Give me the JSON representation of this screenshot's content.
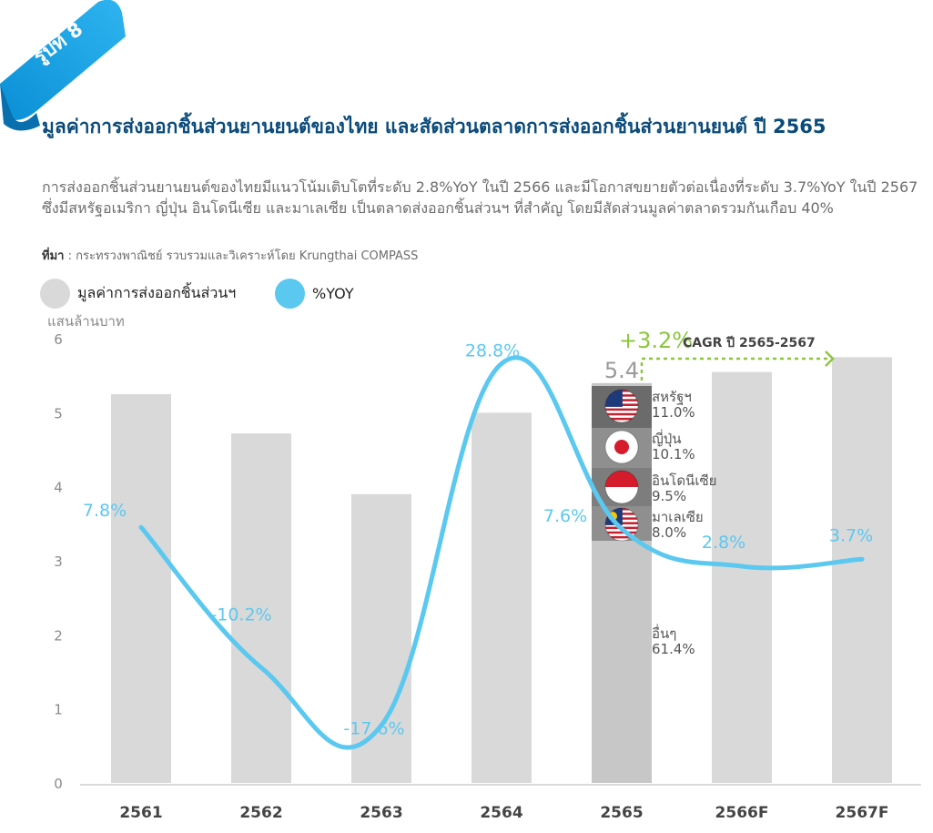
{
  "figure_label": "รูปที่ 8",
  "title": "มูลค่าการส่งออกชิ้นส่วนยานยนต์ของไทย และสัดส่วนตลาดการส่งออกชิ้นส่วนยานยนต์ ปี 2565",
  "subtitle": "การส่งออกชิ้นส่วนยานยนต์ของไทยมีแนวโน้มเติบโตที่ระดับ 2.8%YoY ในปี 2566 และมีโอกาสขยายตัวต่อเนื่องที่ระดับ 3.7%YoY ในปี 2567 ซึ่งมีสหรัฐอเมริกา ญี่ปุ่น อินโดนีเซีย และมาเลเซีย เป็นตลาดส่งออกชิ้นส่วนฯ ที่สำคัญ โดยมีสัดส่วนมูลค่าตลาดรวมกันเกือบ 40%",
  "source_label": "ที่มา",
  "source_text": ": กระทรวงพาณิชย์ รวบรวมและวิเคราะห์โดย Krungthai COMPASS",
  "colors": {
    "bar": "#d9d9d9",
    "bar_highlight": "#c7c7c7",
    "line": "#5bc8f0",
    "cagr": "#8cc63f",
    "title": "#0a4a7a"
  },
  "chart_data": {
    "type": "bar",
    "categories": [
      "2561",
      "2562",
      "2563",
      "2564",
      "2565",
      "2566F",
      "2567F"
    ],
    "series": [
      {
        "name": "มูลค่าการส่งออกชิ้นส่วนฯ",
        "type": "bar",
        "axis": "left",
        "values": [
          5.25,
          4.72,
          3.9,
          5.0,
          5.4,
          5.55,
          5.75
        ]
      },
      {
        "name": "%YOY",
        "type": "line",
        "axis": "right",
        "values": [
          7.8,
          -10.2,
          -17.6,
          28.8,
          7.6,
          2.8,
          3.7
        ],
        "labels": [
          "7.8%",
          "-10.2%",
          "-17.6%",
          "28.8%",
          "7.6%",
          "2.8%",
          "3.7%"
        ]
      }
    ],
    "ylabel": "แสนล้านบาท",
    "ylim": [
      0,
      6
    ],
    "yticks": [
      "0",
      "1",
      "2",
      "3",
      "4",
      "5",
      "6"
    ],
    "y2lim": [
      -25,
      32
    ],
    "bar_label": {
      "category": "2565",
      "text": "5.4"
    },
    "cagr": {
      "value": "+3.2%",
      "label": "CAGR ปี 2565-2567"
    },
    "breakdown": [
      {
        "name": "สหรัฐฯ",
        "share": 11.0,
        "label": "11.0%",
        "flag": "us-flag"
      },
      {
        "name": "ญี่ปุ่น",
        "share": 10.1,
        "label": "10.1%",
        "flag": "japan-flag"
      },
      {
        "name": "อินโดนีเซีย",
        "share": 9.5,
        "label": "9.5%",
        "flag": "indonesia-flag"
      },
      {
        "name": "มาเลเซีย",
        "share": 8.0,
        "label": "8.0%",
        "flag": "malaysia-flag"
      },
      {
        "name": "อื่นๆ",
        "share": 61.4,
        "label": "61.4%",
        "flag": ""
      }
    ]
  }
}
